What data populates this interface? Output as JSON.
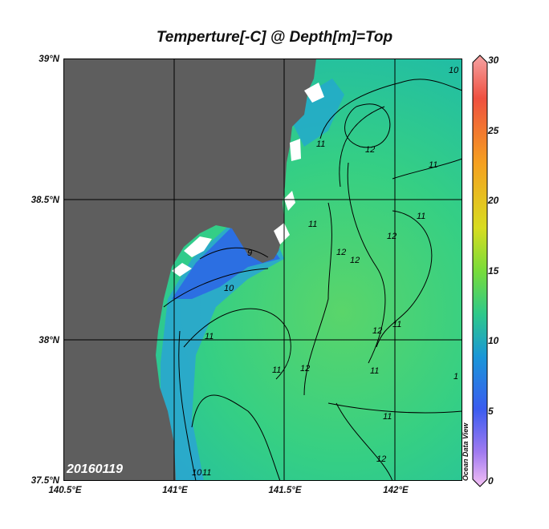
{
  "title": "Temperture[-C] @ Depth[m]=Top",
  "date_stamp": "20160119",
  "watermark": "Ocean Data View",
  "lat_labels": [
    "39°N",
    "38.5°N",
    "38°N",
    "37.5°N"
  ],
  "lon_labels": [
    "140.5°E",
    "141°E",
    "141.5°E",
    "142°E"
  ],
  "colorbar": {
    "min": 0,
    "max": 30,
    "ticks": [
      "30",
      "25",
      "20",
      "15",
      "10",
      "5",
      "0"
    ],
    "colors": [
      "#f4a0a0",
      "#ef4a3a",
      "#f59a20",
      "#d8d820",
      "#7edb3a",
      "#2ec989",
      "#1a96d8",
      "#3b5cf0",
      "#a67af0",
      "#f0b8f0"
    ]
  },
  "contour_labels": [
    "9",
    "10",
    "10",
    "10",
    "11",
    "11",
    "11",
    "11",
    "11",
    "11",
    "11",
    "11",
    "11",
    "11",
    "12",
    "12",
    "12",
    "12",
    "12",
    "12",
    "12",
    "1"
  ],
  "colors": {
    "land": "#5e5e5e",
    "sea": "#2ec98c",
    "cold_sea": "#1f78e0",
    "grid": "#000000"
  }
}
